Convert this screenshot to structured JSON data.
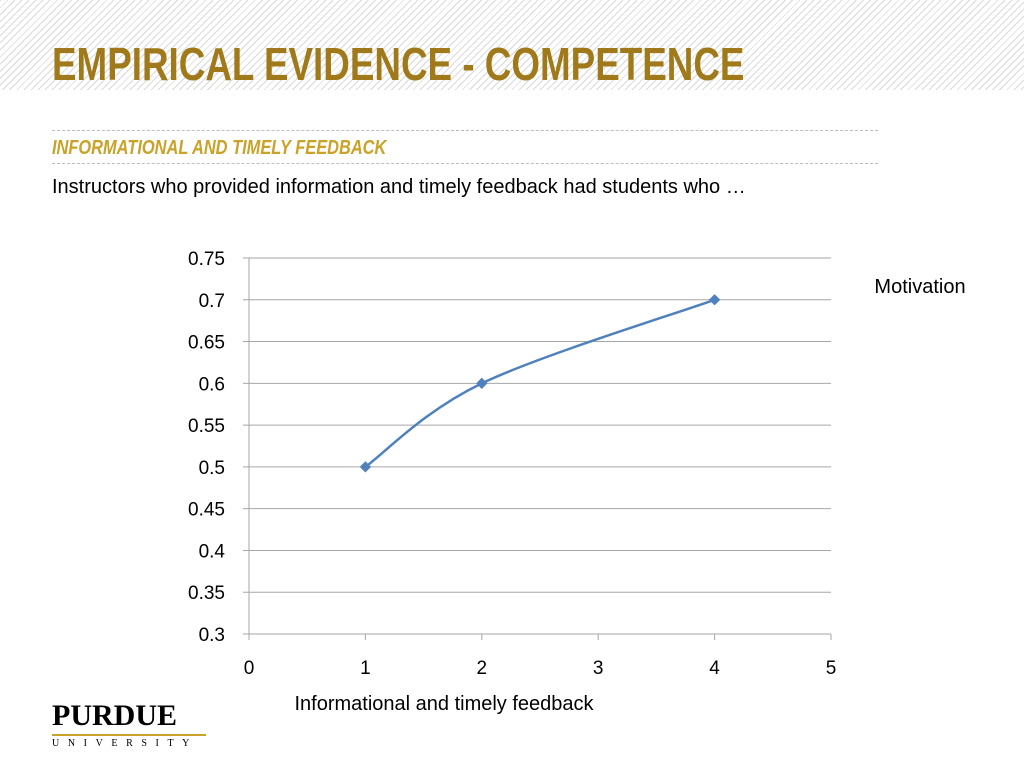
{
  "slide": {
    "title": "EMPIRICAL EVIDENCE - COMPETENCE",
    "subtitle": "INFORMATIONAL AND TIMELY FEEDBACK",
    "body": "Instructors who provided information and timely feedback had students who …"
  },
  "logo": {
    "word": "PURDUE",
    "sub": "UNIVERSITY"
  },
  "colors": {
    "title": "#a07a1a",
    "subtitle": "#c9a227",
    "series": "#4f81bd",
    "grid": "#a6a6a6"
  },
  "chart_data": {
    "type": "line",
    "title": "",
    "xlabel": "Informational and timely feedback",
    "ylabel": "",
    "xlim": [
      0,
      5
    ],
    "ylim": [
      0.3,
      0.75
    ],
    "x_ticks": [
      "0",
      "1",
      "2",
      "3",
      "4",
      "5"
    ],
    "y_ticks": [
      "0.3",
      "0.35",
      "0.4",
      "0.45",
      "0.5",
      "0.55",
      "0.6",
      "0.65",
      "0.7",
      "0.75"
    ],
    "grid": true,
    "smooth": true,
    "legend_position": "right",
    "series": [
      {
        "name": "Motivation",
        "x": [
          1,
          2,
          4
        ],
        "y": [
          0.5,
          0.6,
          0.7
        ]
      }
    ]
  }
}
